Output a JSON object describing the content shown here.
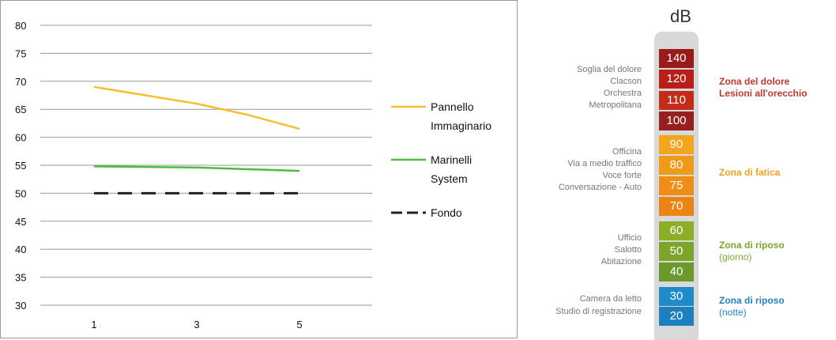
{
  "chart_data": {
    "type": "line",
    "x": [
      1,
      2,
      3,
      4,
      5
    ],
    "x_tick_labels": [
      "1",
      "3",
      "5"
    ],
    "ylim": [
      30,
      80
    ],
    "y_ticks": [
      30,
      35,
      40,
      45,
      50,
      55,
      60,
      65,
      70,
      75,
      80
    ],
    "grid": true,
    "legend_position": "right",
    "series": [
      {
        "name": "Pannello Immaginario",
        "name_lines": [
          "Pannello",
          "Immaginario"
        ],
        "color": "#f7be2f",
        "values": [
          69,
          67.5,
          66,
          64,
          61.5
        ],
        "style": "solid"
      },
      {
        "name": "Marinelli System",
        "name_lines": [
          "Marinelli",
          "System"
        ],
        "color": "#4cbd3e",
        "values": [
          54.8,
          54.7,
          54.6,
          54.3,
          54
        ],
        "style": "solid"
      },
      {
        "name": "Fondo",
        "name_lines": [
          "Fondo"
        ],
        "color": "#222222",
        "values": [
          50,
          50,
          50,
          50,
          50
        ],
        "style": "dashed"
      }
    ]
  },
  "db_scale": {
    "title": "dB",
    "levels": [
      {
        "value": "140",
        "color": "#9a1a1a"
      },
      {
        "value": "120",
        "color": "#b81f1a"
      },
      {
        "value": "110",
        "color": "#c42b19"
      },
      {
        "value": "100",
        "color": "#962020"
      },
      {
        "value": "90",
        "color": "#f2a51d"
      },
      {
        "value": "80",
        "color": "#f09a1a"
      },
      {
        "value": "75",
        "color": "#ee8e17"
      },
      {
        "value": "70",
        "color": "#ec8415"
      },
      {
        "value": "60",
        "color": "#8dae27"
      },
      {
        "value": "50",
        "color": "#7ca52a"
      },
      {
        "value": "40",
        "color": "#6b9a2c"
      },
      {
        "value": "30",
        "color": "#1f8bc9"
      },
      {
        "value": "20",
        "color": "#1c7fbe"
      }
    ],
    "sources": [
      {
        "lines": [
          "Soglia del dolore",
          "Clacson",
          "Orchestra",
          "Metropolitana"
        ]
      },
      {
        "lines": [
          "Officina",
          "Via a medio traffico",
          "Voce forte",
          "Conversazione - Auto"
        ]
      },
      {
        "lines": [
          "Ufficio",
          "Salotto",
          "Abitazione"
        ]
      },
      {
        "lines": [
          "Camera da letto",
          "Studio di registrazione"
        ]
      }
    ],
    "zones": [
      {
        "lines": [
          "Zona del dolore",
          "Lesioni all'orecchio"
        ],
        "color": "#c0392b"
      },
      {
        "lines": [
          "Zona di fatica"
        ],
        "color": "#f0a020"
      },
      {
        "lines": [
          "Zona di riposo",
          "(giorno)"
        ],
        "color": "#7aa82a"
      },
      {
        "lines": [
          "Zona di riposo",
          "(notte)"
        ],
        "color": "#1f84c4"
      }
    ]
  }
}
